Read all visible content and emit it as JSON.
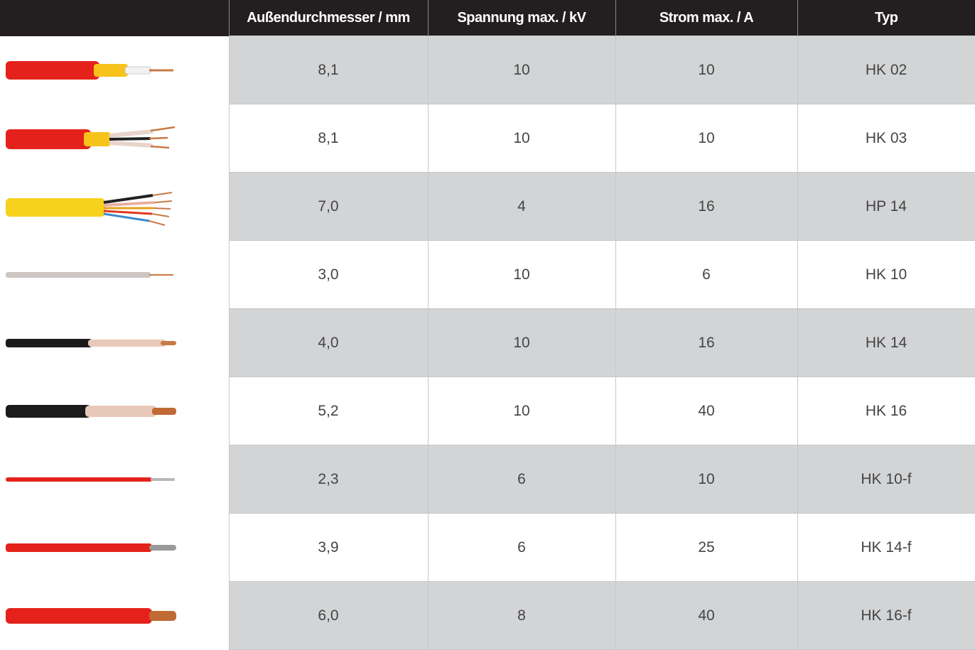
{
  "table": {
    "header": [
      "Außendurchmesser / mm",
      "Spannung max. / kV",
      "Strom max. / A",
      "Typ"
    ],
    "rows": [
      [
        "8,1",
        "10",
        "10",
        "HK 02"
      ],
      [
        "8,1",
        "10",
        "10",
        "HK 03"
      ],
      [
        "7,0",
        "4",
        "16",
        "HP 14"
      ],
      [
        "3,0",
        "10",
        "6",
        "HK 10"
      ],
      [
        "4,0",
        "10",
        "16",
        "HK 14"
      ],
      [
        "5,2",
        "10",
        "40",
        "HK 16"
      ],
      [
        "2,3",
        "6",
        "10",
        "HK 10-f"
      ],
      [
        "3,9",
        "6",
        "25",
        "HK 14-f"
      ],
      [
        "6,0",
        "8",
        "40",
        "HK 16-f"
      ]
    ]
  }
}
